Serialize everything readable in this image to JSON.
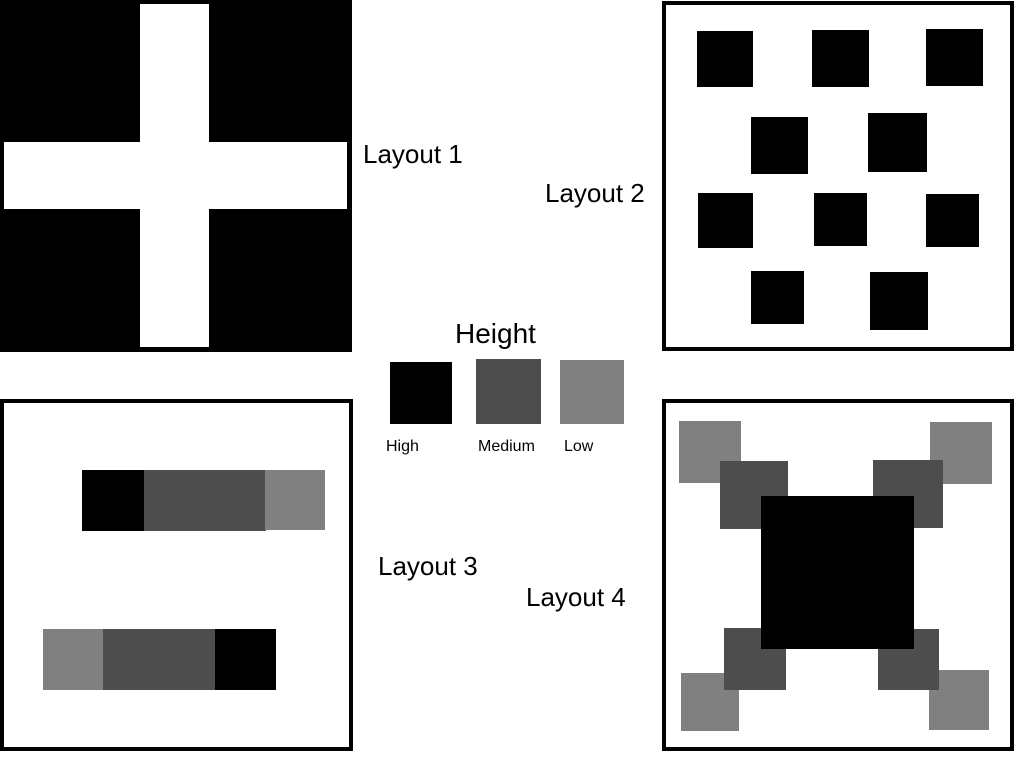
{
  "colors": {
    "high": "#000000",
    "medium": "#4d4d4d",
    "low": "#808080",
    "background": "#ffffff"
  },
  "layouts": [
    {
      "label": "Layout 1"
    },
    {
      "label": "Layout 2"
    },
    {
      "label": "Layout 3"
    },
    {
      "label": "Layout 4"
    }
  ],
  "legend": {
    "title": "Height",
    "items": [
      {
        "label": "High"
      },
      {
        "label": "Medium"
      },
      {
        "label": "Low"
      }
    ]
  }
}
